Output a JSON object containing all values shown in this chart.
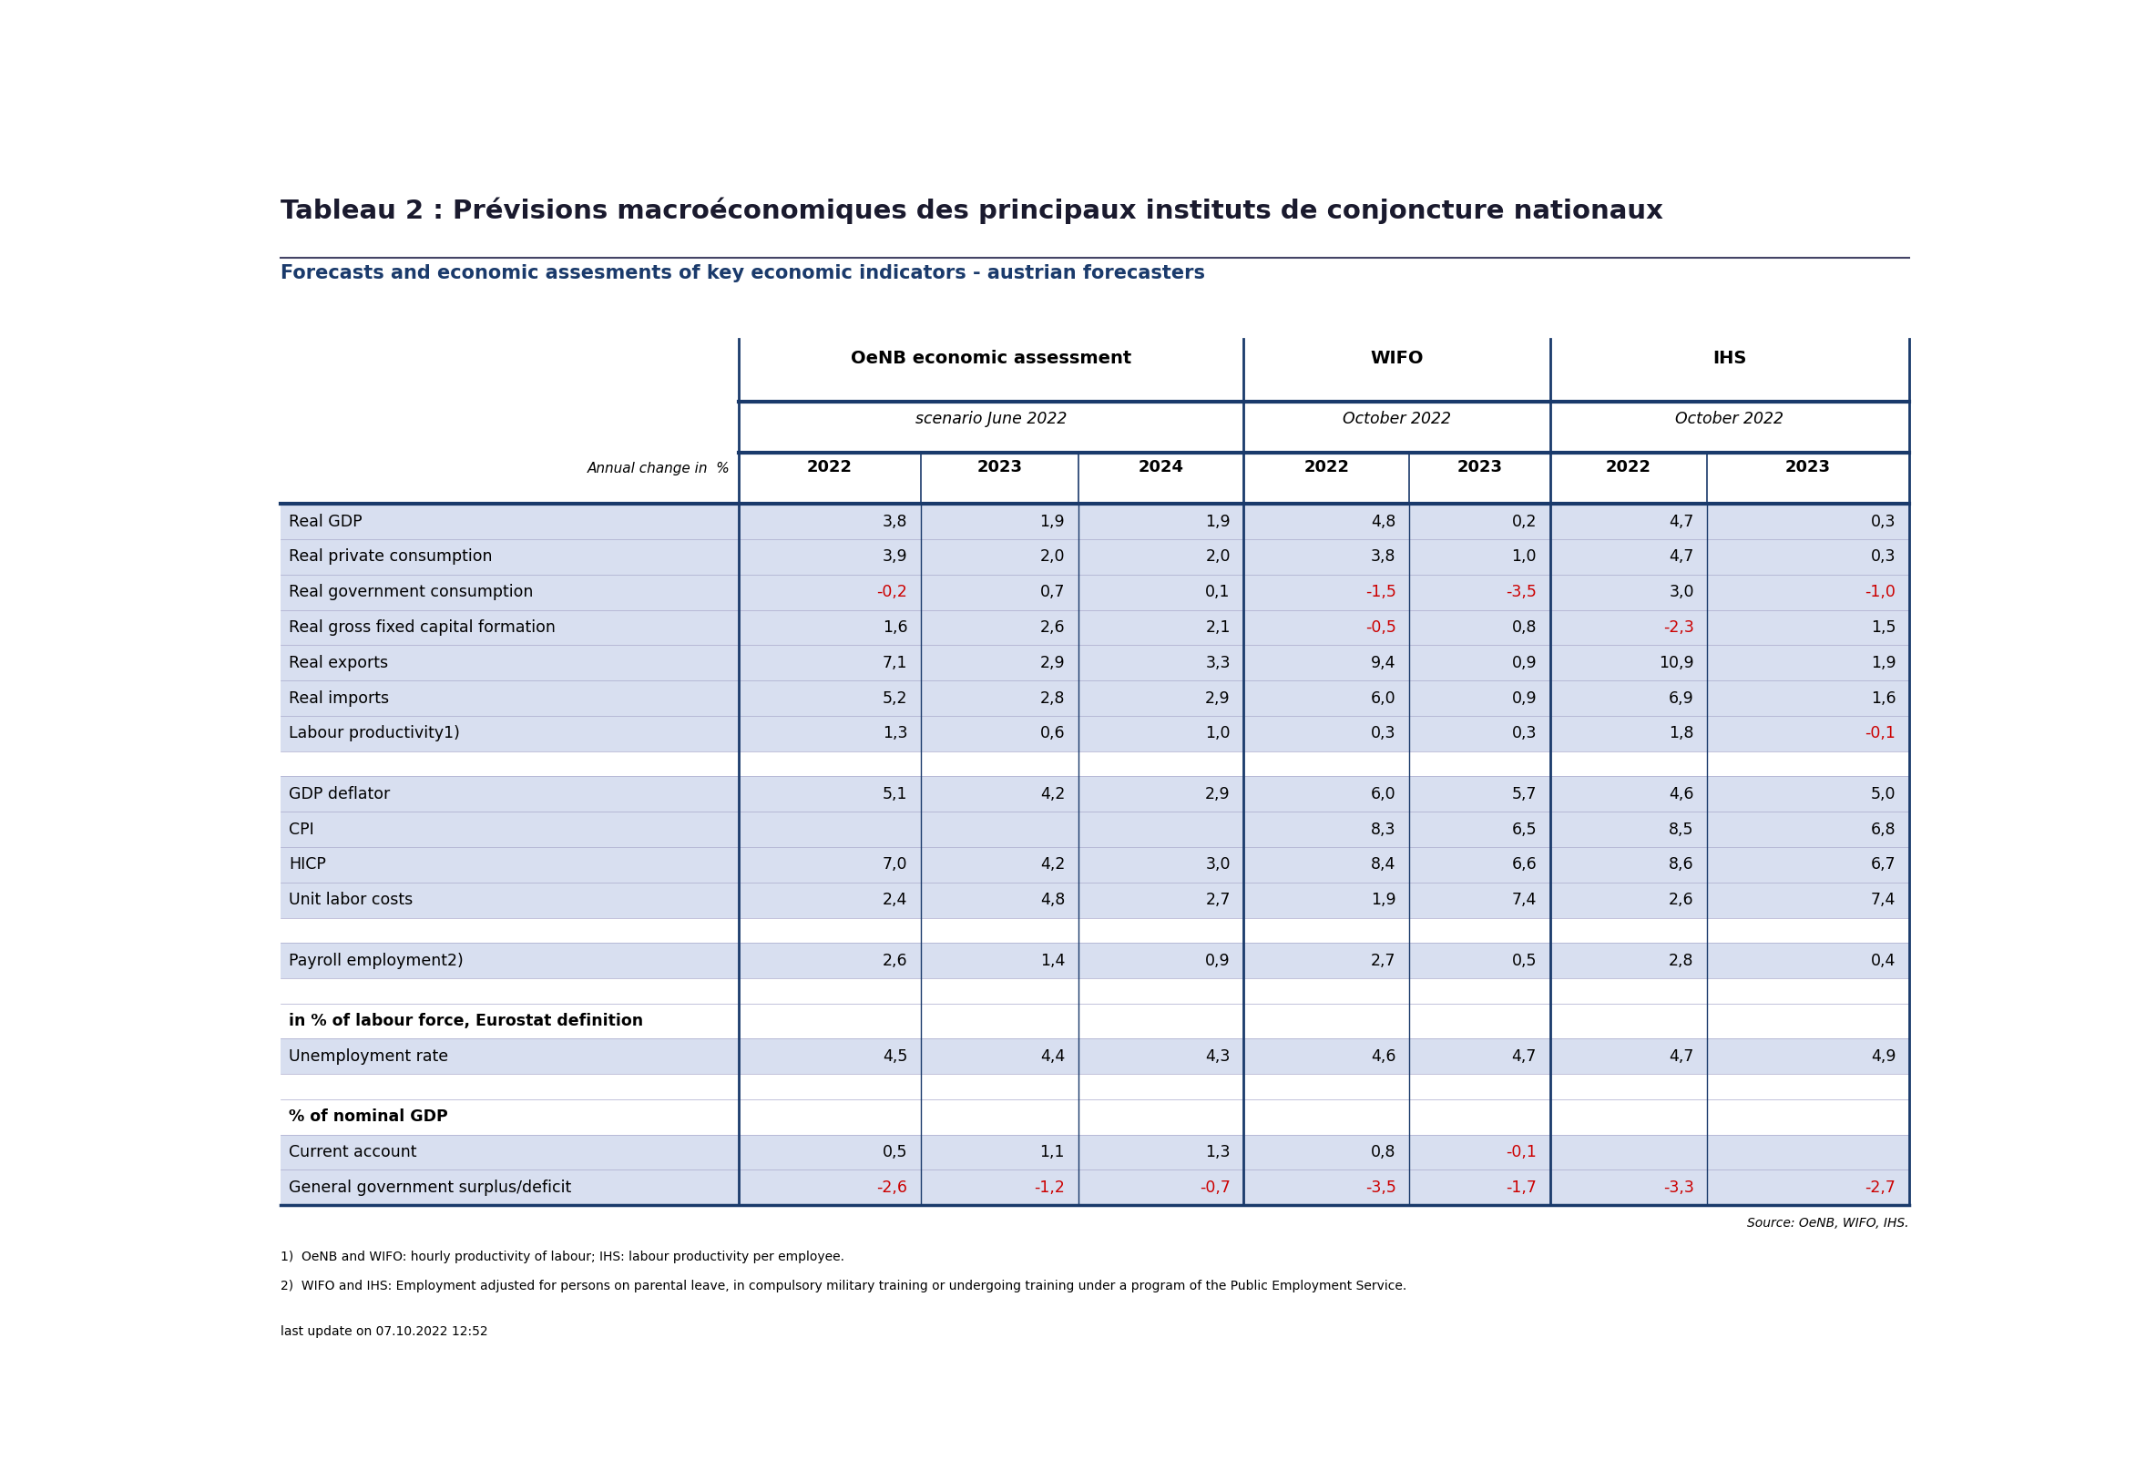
{
  "title": "Tableau 2 : Prévisions macroéconomiques des principaux instituts de conjoncture nationaux",
  "subtitle": "Forecasts and economic assesments of key economic indicators - austrian forecasters",
  "title_color": "#1a1a2e",
  "subtitle_color": "#1a3a6b",
  "header1": "OeNB economic assessment",
  "header2": "WIFO",
  "header3": "IHS",
  "subheader1": "scenario June 2022",
  "subheader2": "October 2022",
  "subheader3": "October 2022",
  "col_label": "Annual change in  %",
  "years": [
    "2022",
    "2023",
    "2024",
    "2022",
    "2023",
    "2022",
    "2023"
  ],
  "rows": [
    {
      "label": "Real GDP",
      "vals": [
        "3,8",
        "1,9",
        "1,9",
        "4,8",
        "0,2",
        "4,7",
        "0,3"
      ],
      "red": [
        false,
        false,
        false,
        false,
        false,
        false,
        false
      ],
      "bg": "blue"
    },
    {
      "label": "Real private consumption",
      "vals": [
        "3,9",
        "2,0",
        "2,0",
        "3,8",
        "1,0",
        "4,7",
        "0,3"
      ],
      "red": [
        false,
        false,
        false,
        false,
        false,
        false,
        false
      ],
      "bg": "blue"
    },
    {
      "label": "Real government consumption",
      "vals": [
        "-0,2",
        "0,7",
        "0,1",
        "-1,5",
        "-3,5",
        "3,0",
        "-1,0"
      ],
      "red": [
        true,
        false,
        false,
        true,
        true,
        false,
        true
      ],
      "bg": "blue"
    },
    {
      "label": "Real gross fixed capital formation",
      "vals": [
        "1,6",
        "2,6",
        "2,1",
        "-0,5",
        "0,8",
        "-2,3",
        "1,5"
      ],
      "red": [
        false,
        false,
        false,
        true,
        false,
        true,
        false
      ],
      "bg": "blue"
    },
    {
      "label": "Real exports",
      "vals": [
        "7,1",
        "2,9",
        "3,3",
        "9,4",
        "0,9",
        "10,9",
        "1,9"
      ],
      "red": [
        false,
        false,
        false,
        false,
        false,
        false,
        false
      ],
      "bg": "blue"
    },
    {
      "label": "Real imports",
      "vals": [
        "5,2",
        "2,8",
        "2,9",
        "6,0",
        "0,9",
        "6,9",
        "1,6"
      ],
      "red": [
        false,
        false,
        false,
        false,
        false,
        false,
        false
      ],
      "bg": "blue"
    },
    {
      "label": "Labour productivity1)",
      "vals": [
        "1,3",
        "0,6",
        "1,0",
        "0,3",
        "0,3",
        "1,8",
        "-0,1"
      ],
      "red": [
        false,
        false,
        false,
        false,
        false,
        false,
        true
      ],
      "bg": "blue"
    },
    {
      "label": "",
      "vals": [
        "",
        "",
        "",
        "",
        "",
        "",
        ""
      ],
      "red": [
        false,
        false,
        false,
        false,
        false,
        false,
        false
      ],
      "bg": "white"
    },
    {
      "label": "GDP deflator",
      "vals": [
        "5,1",
        "4,2",
        "2,9",
        "6,0",
        "5,7",
        "4,6",
        "5,0"
      ],
      "red": [
        false,
        false,
        false,
        false,
        false,
        false,
        false
      ],
      "bg": "blue"
    },
    {
      "label": "CPI",
      "vals": [
        "",
        "",
        "",
        "8,3",
        "6,5",
        "8,5",
        "6,8"
      ],
      "red": [
        false,
        false,
        false,
        false,
        false,
        false,
        false
      ],
      "bg": "blue"
    },
    {
      "label": "HICP",
      "vals": [
        "7,0",
        "4,2",
        "3,0",
        "8,4",
        "6,6",
        "8,6",
        "6,7"
      ],
      "red": [
        false,
        false,
        false,
        false,
        false,
        false,
        false
      ],
      "bg": "blue"
    },
    {
      "label": "Unit labor costs",
      "vals": [
        "2,4",
        "4,8",
        "2,7",
        "1,9",
        "7,4",
        "2,6",
        "7,4"
      ],
      "red": [
        false,
        false,
        false,
        false,
        false,
        false,
        false
      ],
      "bg": "blue"
    },
    {
      "label": "",
      "vals": [
        "",
        "",
        "",
        "",
        "",
        "",
        ""
      ],
      "red": [
        false,
        false,
        false,
        false,
        false,
        false,
        false
      ],
      "bg": "white"
    },
    {
      "label": "Payroll employment2)",
      "vals": [
        "2,6",
        "1,4",
        "0,9",
        "2,7",
        "0,5",
        "2,8",
        "0,4"
      ],
      "red": [
        false,
        false,
        false,
        false,
        false,
        false,
        false
      ],
      "bg": "blue"
    },
    {
      "label": "",
      "vals": [
        "",
        "",
        "",
        "",
        "",
        "",
        ""
      ],
      "red": [
        false,
        false,
        false,
        false,
        false,
        false,
        false
      ],
      "bg": "white"
    },
    {
      "label": "in % of labour force, Eurostat definition",
      "vals": [
        "",
        "",
        "",
        "",
        "",
        "",
        ""
      ],
      "red": [
        false,
        false,
        false,
        false,
        false,
        false,
        false
      ],
      "bold": true,
      "bg": "white"
    },
    {
      "label": "Unemployment rate",
      "vals": [
        "4,5",
        "4,4",
        "4,3",
        "4,6",
        "4,7",
        "4,7",
        "4,9"
      ],
      "red": [
        false,
        false,
        false,
        false,
        false,
        false,
        false
      ],
      "bg": "blue"
    },
    {
      "label": "",
      "vals": [
        "",
        "",
        "",
        "",
        "",
        "",
        ""
      ],
      "red": [
        false,
        false,
        false,
        false,
        false,
        false,
        false
      ],
      "bg": "white"
    },
    {
      "label": "% of nominal GDP",
      "vals": [
        "",
        "",
        "",
        "",
        "",
        "",
        ""
      ],
      "red": [
        false,
        false,
        false,
        false,
        false,
        false,
        false
      ],
      "bold": true,
      "bg": "white"
    },
    {
      "label": "Current account",
      "vals": [
        "0,5",
        "1,1",
        "1,3",
        "0,8",
        "-0,1",
        "",
        ""
      ],
      "red": [
        false,
        false,
        false,
        false,
        true,
        false,
        false
      ],
      "bg": "blue"
    },
    {
      "label": "General government surplus/deficit",
      "vals": [
        "-2,6",
        "-1,2",
        "-0,7",
        "-3,5",
        "-1,7",
        "-3,3",
        "-2,7"
      ],
      "red": [
        true,
        true,
        true,
        true,
        true,
        true,
        true
      ],
      "bg": "blue"
    }
  ],
  "footer1": "1)  OeNB and WIFO: hourly productivity of labour; IHS: labour productivity per employee.",
  "footer2": "2)  WIFO and IHS: Employment adjusted for persons on parental leave, in compulsory military training or undergoing training under a program of the Public Employment Service.",
  "footer3": "last update on 07.10.2022 12:52",
  "source": "Source: OeNB, WIFO, IHS.",
  "row_bg_color": "#d8dff0",
  "white_bg": "#ffffff",
  "header_color": "#1a3a6b",
  "border_color": "#1a3a6b",
  "red_color": "#cc0000",
  "black_color": "#000000",
  "thin_line_color": "#aaaacc"
}
